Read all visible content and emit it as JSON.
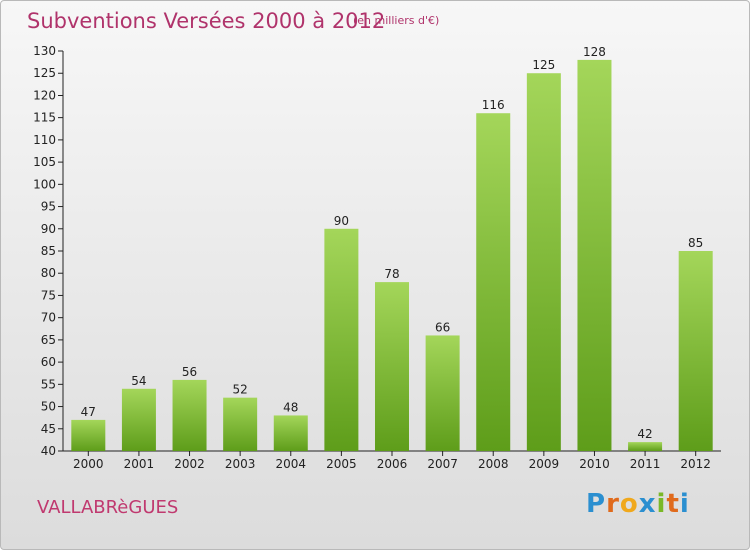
{
  "title": "Subventions Versées 2000 à 2012",
  "subtitle": "(en milliers d'€)",
  "place": "VALLABRèGUES",
  "logo": {
    "letters": [
      "P",
      "r",
      "o",
      "x",
      "i",
      "t",
      "i"
    ],
    "colors": [
      "#2b8fd0",
      "#e06a1c",
      "#f0a81c",
      "#2b8fd0",
      "#7ab827",
      "#e06a1c",
      "#2b8fd0"
    ]
  },
  "colors": {
    "bar_light": "#a4d65a",
    "bar_dark": "#5e9d1a",
    "axis": "#222222",
    "title": "#b0336b"
  },
  "chart_data": {
    "type": "bar",
    "title": "Subventions Versées 2000 à 2012",
    "subtitle": "(en milliers d'€)",
    "categories": [
      "2000",
      "2001",
      "2002",
      "2003",
      "2004",
      "2005",
      "2006",
      "2007",
      "2008",
      "2009",
      "2010",
      "2011",
      "2012"
    ],
    "values": [
      47,
      54,
      56,
      52,
      48,
      90,
      78,
      66,
      116,
      125,
      128,
      42,
      85
    ],
    "ylim": [
      40,
      130
    ],
    "yticks": [
      40,
      45,
      50,
      55,
      60,
      65,
      70,
      75,
      80,
      85,
      90,
      95,
      100,
      105,
      110,
      115,
      120,
      125,
      130
    ],
    "xlabel": "",
    "ylabel": "",
    "grid": false,
    "legend": "none"
  }
}
